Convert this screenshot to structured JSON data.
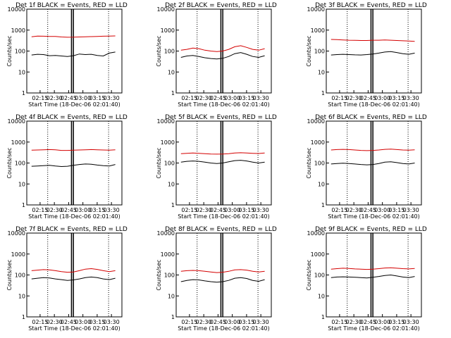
{
  "chart_data": [
    {
      "type": "line",
      "title": "Det 1f BLACK = Events, RED = LLD",
      "xlabel": "Start Time (18-Dec-06 02:01:40)",
      "ylabel": "Counts/sec",
      "xlim": [
        0,
        1
      ],
      "ylim": [
        1,
        10000
      ],
      "yscale": "log",
      "x_ticks": [
        "02:15",
        "02:30",
        "02:45",
        "03:00",
        "03:15",
        "03:30"
      ],
      "y_ticks": [
        "1",
        "10",
        "100",
        "1000",
        "10000"
      ],
      "series": [
        {
          "color": "#000000",
          "values": [
            65,
            70,
            68,
            60,
            62,
            58,
            55,
            60,
            72,
            68,
            70,
            62,
            58,
            80,
            90
          ]
        },
        {
          "color": "#d40000",
          "values": [
            480,
            520,
            510,
            500,
            495,
            470,
            455,
            460,
            470,
            480,
            490,
            500,
            510,
            520,
            530
          ]
        }
      ]
    },
    {
      "type": "line",
      "title": "Det 2f BLACK = Events, RED = LLD",
      "xlabel": "Start Time (18-Dec-06 02:01:40)",
      "ylabel": "Counts/sec",
      "xlim": [
        0,
        1
      ],
      "ylim": [
        1,
        10000
      ],
      "yscale": "log",
      "x_ticks": [
        "02:15",
        "02:30",
        "02:45",
        "03:00",
        "03:15",
        "03:30"
      ],
      "y_ticks": [
        "1",
        "10",
        "100",
        "1000",
        "10000"
      ],
      "series": [
        {
          "color": "#000000",
          "values": [
            50,
            58,
            62,
            55,
            48,
            44,
            42,
            45,
            55,
            75,
            85,
            70,
            55,
            50,
            60
          ]
        },
        {
          "color": "#d40000",
          "values": [
            110,
            120,
            140,
            130,
            110,
            100,
            95,
            100,
            120,
            160,
            180,
            150,
            120,
            110,
            130
          ]
        }
      ]
    },
    {
      "type": "line",
      "title": "Det 3f BLACK = Events, RED = LLD",
      "xlabel": "Start Time (18-Dec-06 02:01:40)",
      "ylabel": "Counts/sec",
      "xlim": [
        0,
        1
      ],
      "ylim": [
        1,
        10000
      ],
      "yscale": "log",
      "x_ticks": [
        "02:15",
        "02:30",
        "02:45",
        "03:00",
        "03:15",
        "03:30"
      ],
      "y_ticks": [
        "1",
        "10",
        "100",
        "1000",
        "10000"
      ],
      "series": [
        {
          "color": "#000000",
          "values": [
            65,
            68,
            70,
            68,
            66,
            65,
            68,
            72,
            80,
            90,
            95,
            85,
            75,
            70,
            80
          ]
        },
        {
          "color": "#d40000",
          "values": [
            360,
            350,
            340,
            330,
            325,
            320,
            320,
            330,
            330,
            340,
            330,
            320,
            310,
            300,
            290
          ]
        }
      ]
    },
    {
      "type": "line",
      "title": "Det 4f BLACK = Events, RED = LLD",
      "xlabel": "Start Time (18-Dec-06 02:01:40)",
      "ylabel": "Counts/sec",
      "xlim": [
        0,
        1
      ],
      "ylim": [
        1,
        10000
      ],
      "yscale": "log",
      "x_ticks": [
        "02:15",
        "02:30",
        "02:45",
        "03:00",
        "03:15",
        "03:30"
      ],
      "y_ticks": [
        "1",
        "10",
        "100",
        "1000",
        "10000"
      ],
      "series": [
        {
          "color": "#000000",
          "values": [
            70,
            72,
            75,
            78,
            72,
            68,
            70,
            78,
            85,
            90,
            88,
            80,
            75,
            72,
            85
          ]
        },
        {
          "color": "#d40000",
          "values": [
            410,
            420,
            430,
            440,
            430,
            400,
            400,
            410,
            420,
            430,
            440,
            430,
            420,
            410,
            430
          ]
        }
      ]
    },
    {
      "type": "line",
      "title": "Det 5f BLACK = Events, RED = LLD",
      "xlabel": "Start Time (18-Dec-06 02:01:40)",
      "ylabel": "Counts/sec",
      "xlim": [
        0,
        1
      ],
      "ylim": [
        1,
        10000
      ],
      "yscale": "log",
      "x_ticks": [
        "02:15",
        "02:30",
        "02:45",
        "03:00",
        "03:15",
        "03:30"
      ],
      "y_ticks": [
        "1",
        "10",
        "100",
        "1000",
        "10000"
      ],
      "series": [
        {
          "color": "#000000",
          "values": [
            110,
            120,
            125,
            120,
            110,
            100,
            95,
            100,
            115,
            130,
            135,
            125,
            110,
            100,
            110
          ]
        },
        {
          "color": "#d40000",
          "values": [
            280,
            290,
            300,
            290,
            280,
            270,
            265,
            270,
            280,
            300,
            310,
            300,
            290,
            285,
            300
          ]
        }
      ]
    },
    {
      "type": "line",
      "title": "Det 6f BLACK = Events, RED = LLD",
      "xlabel": "Start Time (18-Dec-06 02:01:40)",
      "ylabel": "Counts/sec",
      "xlim": [
        0,
        1
      ],
      "ylim": [
        1,
        10000
      ],
      "yscale": "log",
      "x_ticks": [
        "02:15",
        "02:30",
        "02:45",
        "03:00",
        "03:15",
        "03:30"
      ],
      "y_ticks": [
        "1",
        "10",
        "100",
        "1000",
        "10000"
      ],
      "series": [
        {
          "color": "#000000",
          "values": [
            90,
            95,
            98,
            95,
            90,
            85,
            82,
            85,
            95,
            110,
            115,
            105,
            95,
            90,
            100
          ]
        },
        {
          "color": "#d40000",
          "values": [
            420,
            440,
            450,
            440,
            420,
            400,
            390,
            400,
            420,
            450,
            460,
            440,
            420,
            410,
            430
          ]
        }
      ]
    },
    {
      "type": "line",
      "title": "Det 7f BLACK = Events, RED = LLD",
      "xlabel": "Start Time (18-Dec-06 02:01:40)",
      "ylabel": "Counts/sec",
      "xlim": [
        0,
        1
      ],
      "ylim": [
        1,
        10000
      ],
      "yscale": "log",
      "x_ticks": [
        "02:15",
        "02:30",
        "02:45",
        "03:00",
        "03:15",
        "03:30"
      ],
      "y_ticks": [
        "1",
        "10",
        "100",
        "1000",
        "10000"
      ],
      "series": [
        {
          "color": "#000000",
          "values": [
            65,
            70,
            75,
            72,
            65,
            60,
            55,
            58,
            65,
            75,
            80,
            75,
            65,
            60,
            70
          ]
        },
        {
          "color": "#d40000",
          "values": [
            160,
            170,
            180,
            175,
            160,
            145,
            135,
            140,
            160,
            190,
            200,
            185,
            160,
            145,
            160
          ]
        }
      ]
    },
    {
      "type": "line",
      "title": "Det 8f BLACK = Events, RED = LLD",
      "xlabel": "Start Time (18-Dec-06 02:01:40)",
      "ylabel": "Counts/sec",
      "xlim": [
        0,
        1
      ],
      "ylim": [
        1,
        10000
      ],
      "yscale": "log",
      "x_ticks": [
        "02:15",
        "02:30",
        "02:45",
        "03:00",
        "03:15",
        "03:30"
      ],
      "y_ticks": [
        "1",
        "10",
        "100",
        "1000",
        "10000"
      ],
      "series": [
        {
          "color": "#000000",
          "values": [
            48,
            55,
            60,
            58,
            52,
            48,
            45,
            48,
            55,
            70,
            75,
            68,
            55,
            50,
            60
          ]
        },
        {
          "color": "#d40000",
          "values": [
            150,
            160,
            165,
            160,
            150,
            140,
            130,
            135,
            150,
            175,
            180,
            170,
            150,
            140,
            150
          ]
        }
      ]
    },
    {
      "type": "line",
      "title": "Det 9f BLACK = Events, RED = LLD",
      "xlabel": "Start Time (18-Dec-06 02:01:40)",
      "ylabel": "Counts/sec",
      "xlim": [
        0,
        1
      ],
      "ylim": [
        1,
        10000
      ],
      "yscale": "log",
      "x_ticks": [
        "02:15",
        "02:30",
        "02:45",
        "03:00",
        "03:15",
        "03:30"
      ],
      "y_ticks": [
        "1",
        "10",
        "100",
        "1000",
        "10000"
      ],
      "series": [
        {
          "color": "#000000",
          "values": [
            75,
            80,
            82,
            80,
            78,
            75,
            72,
            78,
            85,
            95,
            100,
            90,
            80,
            75,
            85
          ]
        },
        {
          "color": "#d40000",
          "values": [
            190,
            200,
            210,
            205,
            195,
            190,
            185,
            190,
            200,
            215,
            220,
            210,
            200,
            195,
            205
          ]
        }
      ]
    }
  ]
}
